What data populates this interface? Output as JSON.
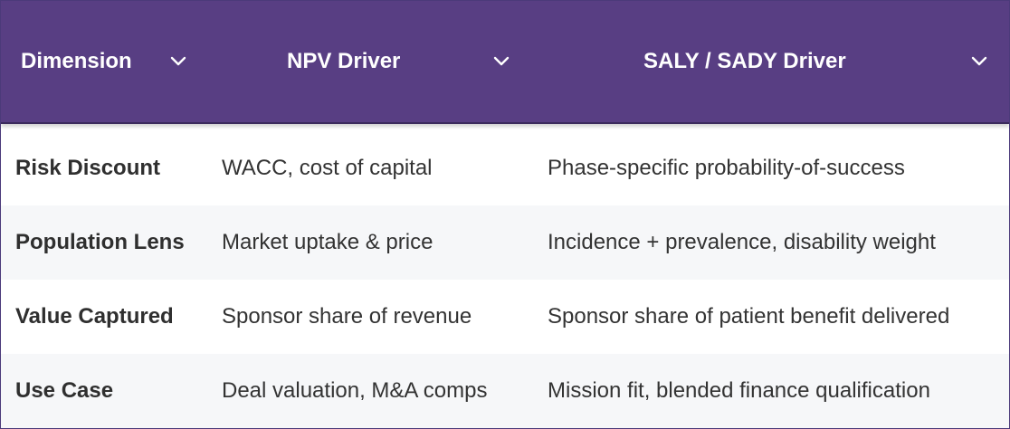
{
  "table": {
    "columns": [
      {
        "label": "Dimension"
      },
      {
        "label": "NPV Driver"
      },
      {
        "label": "SALY / SADY Driver"
      }
    ],
    "rows": [
      {
        "dimension": "Risk Discount",
        "npv": "WACC, cost of capital",
        "saly": "Phase-specific probability-of-success"
      },
      {
        "dimension": "Population Lens",
        "npv": "Market uptake & price",
        "saly": "Incidence + prevalence, disability weight"
      },
      {
        "dimension": "Value Captured",
        "npv": "Sponsor share of revenue",
        "saly": "Sponsor share of patient benefit delivered"
      },
      {
        "dimension": "Use Case",
        "npv": "Deal valuation, M&A comps",
        "saly": "Mission fit, blended finance qualification"
      }
    ]
  },
  "icons": {
    "sort": "chevron-down-icon"
  },
  "colors": {
    "header_bg": "#583e83",
    "header_text": "#ffffff",
    "row_alt_bg": "#f6f7f9",
    "body_text": "#333333"
  }
}
